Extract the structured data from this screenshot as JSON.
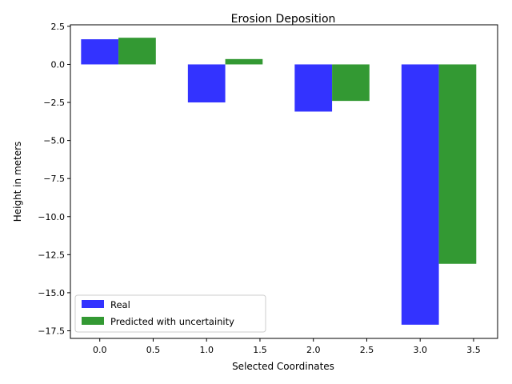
{
  "chart_data": {
    "type": "bar",
    "title": "Erosion Deposition",
    "xlabel": "Selected Coordinates",
    "ylabel": "Height in meters",
    "xlim": [
      -0.275,
      3.725
    ],
    "ylim": [
      -18.0,
      2.6
    ],
    "xticks": [
      0.0,
      0.5,
      1.0,
      1.5,
      2.0,
      2.5,
      3.0,
      3.5
    ],
    "xtick_labels": [
      "0.0",
      "0.5",
      "1.0",
      "1.5",
      "2.0",
      "2.5",
      "3.0",
      "3.5"
    ],
    "yticks": [
      2.5,
      0.0,
      -2.5,
      -5.0,
      -7.5,
      -10.0,
      -12.5,
      -15.0,
      -17.5
    ],
    "ytick_labels": [
      "2.5",
      "0.0",
      "−2.5",
      "−5.0",
      "−7.5",
      "−10.0",
      "−12.5",
      "−15.0",
      "−17.5"
    ],
    "bar_width": 0.35,
    "legend_position": "lower-left",
    "grid": false,
    "series": [
      {
        "name": "Real",
        "color": "#3333ff",
        "x": [
          0.0,
          1.0,
          2.0,
          3.0
        ],
        "values": [
          1.65,
          -2.5,
          -3.1,
          -17.1
        ]
      },
      {
        "name": "Predicted with uncertainity",
        "color": "#339933",
        "x": [
          0.35,
          1.35,
          2.35,
          3.35
        ],
        "values": [
          1.75,
          0.35,
          -2.4,
          -13.1
        ]
      }
    ]
  }
}
